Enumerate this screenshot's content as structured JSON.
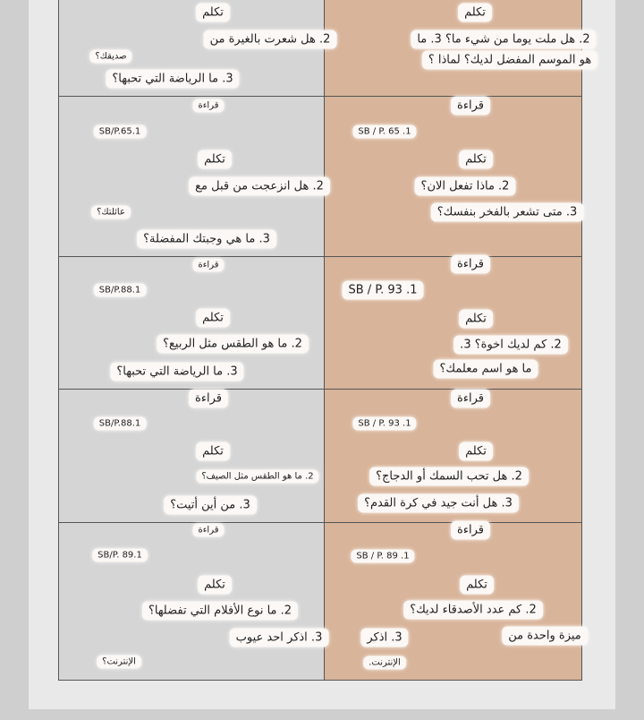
{
  "rows": [
    {
      "left": [
        "تكلم",
        "2. هل شعرت بالغيرة من",
        "صديقك؟",
        "3. ما الرياضة التي تحبها؟"
      ],
      "right": [
        "تكلم",
        "2. هل ملت يوما من شيء ما؟ 3. ما",
        "هو الموسم المفضل لديك؟ لماذا ؟"
      ]
    },
    {
      "left": [
        "قراءة",
        "SB/P.65.1",
        "تكلم",
        "2. هل انزعجت من قبل مع",
        "عائلتك؟",
        "3. ما هي وجبتك المفضلة؟"
      ],
      "right": [
        "قراءة",
        "SB / P. 65 .1",
        "تكلم",
        "2. ماذا تفعل الان؟",
        "3. متى تشعر بالفخر بنفسك؟"
      ]
    },
    {
      "left": [
        "قراءة",
        "SB/P.88.1",
        "تكلم",
        "2. ما هو الطقس مثل الربيع؟",
        "3. ما الرياضة التي تحبها؟"
      ],
      "right": [
        "قراءة",
        "SB / P. 93 .1",
        "تكلم",
        "2. كم لديك اخوة؟ 3.",
        "ما هو اسم معلمك؟"
      ]
    },
    {
      "left": [
        "قراءة",
        "SB/P.88.1",
        "تكلم",
        "2. ما هو الطقس مثل الصيف؟",
        "3. من أين أتيت؟"
      ],
      "right": [
        "قراءة",
        "SB / P. 93 .1",
        "تكلم",
        "2. هل تحب السمك أو الدجاج؟",
        "3. هل أنت جيد في كرة القدم؟"
      ]
    },
    {
      "left": [
        "قراءة",
        "SB/P. 89.1",
        "تكلم",
        "2. ما نوع الأفلام التي تفضلها؟",
        "3. اذكر احد عيوب",
        "الإنترنت؟"
      ],
      "right": [
        "قراءة",
        "SB / P. 89 .1",
        "تكلم",
        "2. كم عدد الأصدقاء لديك؟",
        "3. اذكر",
        "ميزة واحدة من",
        "الإنترنت."
      ]
    }
  ]
}
